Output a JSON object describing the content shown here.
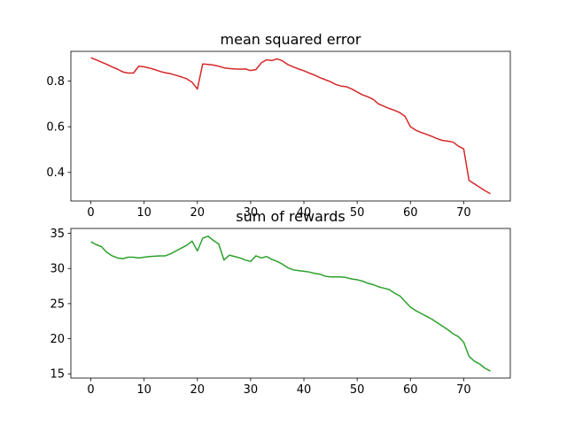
{
  "chart_data": [
    {
      "type": "line",
      "title": "mean squared error",
      "x": [
        0,
        1,
        2,
        3,
        4,
        5,
        6,
        7,
        8,
        9,
        10,
        11,
        12,
        13,
        14,
        15,
        16,
        17,
        18,
        19,
        20,
        21,
        22,
        23,
        24,
        25,
        26,
        27,
        28,
        29,
        30,
        31,
        32,
        33,
        34,
        35,
        36,
        37,
        38,
        39,
        40,
        41,
        42,
        43,
        44,
        45,
        46,
        47,
        48,
        49,
        50,
        51,
        52,
        53,
        54,
        55,
        56,
        57,
        58,
        59,
        60,
        61,
        62,
        63,
        64,
        65,
        66,
        67,
        68,
        69,
        70,
        71,
        72,
        73,
        74,
        75
      ],
      "series": [
        {
          "color": "#d62728",
          "values": [
            0.902,
            0.893,
            0.883,
            0.873,
            0.862,
            0.852,
            0.84,
            0.835,
            0.835,
            0.865,
            0.862,
            0.857,
            0.85,
            0.842,
            0.836,
            0.832,
            0.825,
            0.818,
            0.81,
            0.795,
            0.765,
            0.875,
            0.873,
            0.87,
            0.865,
            0.858,
            0.855,
            0.853,
            0.852,
            0.853,
            0.846,
            0.85,
            0.88,
            0.893,
            0.89,
            0.897,
            0.888,
            0.872,
            0.862,
            0.853,
            0.845,
            0.835,
            0.826,
            0.815,
            0.806,
            0.797,
            0.785,
            0.778,
            0.775,
            0.765,
            0.752,
            0.74,
            0.731,
            0.72,
            0.7,
            0.69,
            0.68,
            0.672,
            0.662,
            0.645,
            0.6,
            0.585,
            0.575,
            0.567,
            0.558,
            0.548,
            0.54,
            0.537,
            0.533,
            0.515,
            0.503,
            0.365,
            0.35,
            0.335,
            0.32,
            0.307
          ]
        }
      ],
      "xlim": [
        -3.75,
        78.75
      ],
      "xticks": [
        0,
        10,
        20,
        30,
        40,
        50,
        60,
        70
      ],
      "ylim": [
        0.275,
        0.93
      ],
      "yticks": [
        0.4,
        0.6,
        0.8
      ]
    },
    {
      "type": "line",
      "title": "sum of rewards",
      "x": [
        0,
        1,
        2,
        3,
        4,
        5,
        6,
        7,
        8,
        9,
        10,
        11,
        12,
        13,
        14,
        15,
        16,
        17,
        18,
        19,
        20,
        21,
        22,
        23,
        24,
        25,
        26,
        27,
        28,
        29,
        30,
        31,
        32,
        33,
        34,
        35,
        36,
        37,
        38,
        39,
        40,
        41,
        42,
        43,
        44,
        45,
        46,
        47,
        48,
        49,
        50,
        51,
        52,
        53,
        54,
        55,
        56,
        57,
        58,
        59,
        60,
        61,
        62,
        63,
        64,
        65,
        66,
        67,
        68,
        69,
        70,
        71,
        72,
        73,
        74,
        75
      ],
      "series": [
        {
          "color": "#2ca02c",
          "values": [
            33.8,
            33.4,
            33.1,
            32.3,
            31.8,
            31.5,
            31.4,
            31.6,
            31.6,
            31.5,
            31.6,
            31.7,
            31.75,
            31.8,
            31.8,
            32.1,
            32.5,
            32.9,
            33.3,
            33.9,
            32.5,
            34.3,
            34.6,
            34.0,
            33.5,
            31.2,
            31.9,
            31.7,
            31.5,
            31.2,
            31.0,
            31.8,
            31.5,
            31.7,
            31.3,
            31.0,
            30.6,
            30.1,
            29.8,
            29.7,
            29.6,
            29.5,
            29.3,
            29.2,
            28.9,
            28.8,
            28.8,
            28.8,
            28.7,
            28.5,
            28.4,
            28.2,
            27.9,
            27.7,
            27.4,
            27.2,
            27.0,
            26.5,
            26.1,
            25.3,
            24.5,
            24.0,
            23.6,
            23.2,
            22.8,
            22.3,
            21.8,
            21.3,
            20.7,
            20.3,
            19.5,
            17.5,
            16.8,
            16.4,
            15.8,
            15.4
          ]
        }
      ],
      "xlim": [
        -3.75,
        78.75
      ],
      "xticks": [
        0,
        10,
        20,
        30,
        40,
        50,
        60,
        70
      ],
      "ylim": [
        14.4,
        35.7
      ],
      "yticks": [
        15,
        20,
        25,
        30,
        35
      ]
    }
  ]
}
